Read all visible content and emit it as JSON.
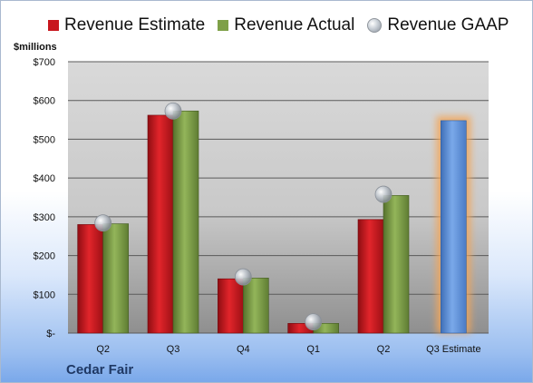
{
  "chart_data": {
    "type": "bar",
    "unit_label": "$millions",
    "company": "Cedar Fair",
    "categories": [
      "Q2",
      "Q3",
      "Q4",
      "Q1",
      "Q2",
      "Q3 Estimate"
    ],
    "ylim": [
      0,
      700
    ],
    "ytick_values": [
      0,
      100,
      200,
      300,
      400,
      500,
      600,
      700
    ],
    "ytick_labels": [
      "$-",
      "$100",
      "$200",
      "$300",
      "$400",
      "$500",
      "$600",
      "$700"
    ],
    "grid": true,
    "legend_position": "top",
    "series": [
      {
        "name": "Revenue Estimate",
        "values": [
          280,
          562,
          140,
          25,
          293,
          548
        ],
        "color": "#c8161d"
      },
      {
        "name": "Revenue Actual",
        "values": [
          282,
          573,
          142,
          25,
          355,
          null
        ],
        "color": "#7ea048"
      },
      {
        "name": "Revenue GAAP",
        "values": [
          284,
          573,
          145,
          29,
          358,
          null
        ],
        "color": "#b9c0c8",
        "marker": "sphere"
      }
    ],
    "highlight": {
      "category_index": 5,
      "value": 548,
      "color": "#5b8fd9",
      "glow_color": "#f2a65a"
    }
  }
}
